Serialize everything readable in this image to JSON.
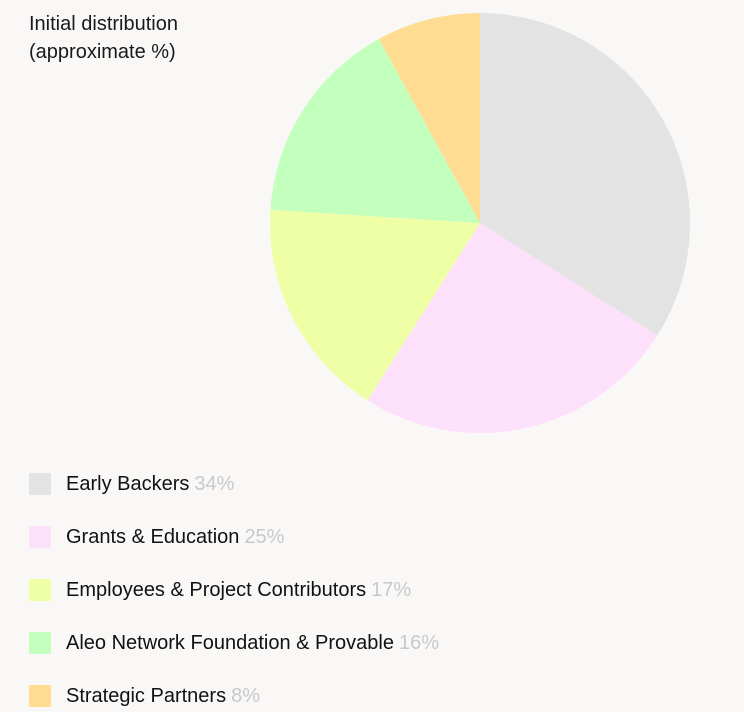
{
  "chart_data": {
    "type": "pie",
    "title_line1": "Initial distribution",
    "title_line2": "(approximate %)",
    "legend_placement": "bottom-left",
    "slices": [
      {
        "label": "Early Backers",
        "value": 34,
        "value_text": "34%",
        "color": "#e3e3e3"
      },
      {
        "label": "Grants & Education",
        "value": 25,
        "value_text": "25%",
        "color": "#fde0fa"
      },
      {
        "label": "Employees & Project Contributors",
        "value": 17,
        "value_text": "17%",
        "color": "#eeffa6"
      },
      {
        "label": "Aleo Network Foundation & Provable",
        "value": 16,
        "value_text": "16%",
        "color": "#c3ffbd"
      },
      {
        "label": "Strategic Partners",
        "value": 8,
        "value_text": "8%",
        "color": "#fedc92"
      }
    ]
  }
}
